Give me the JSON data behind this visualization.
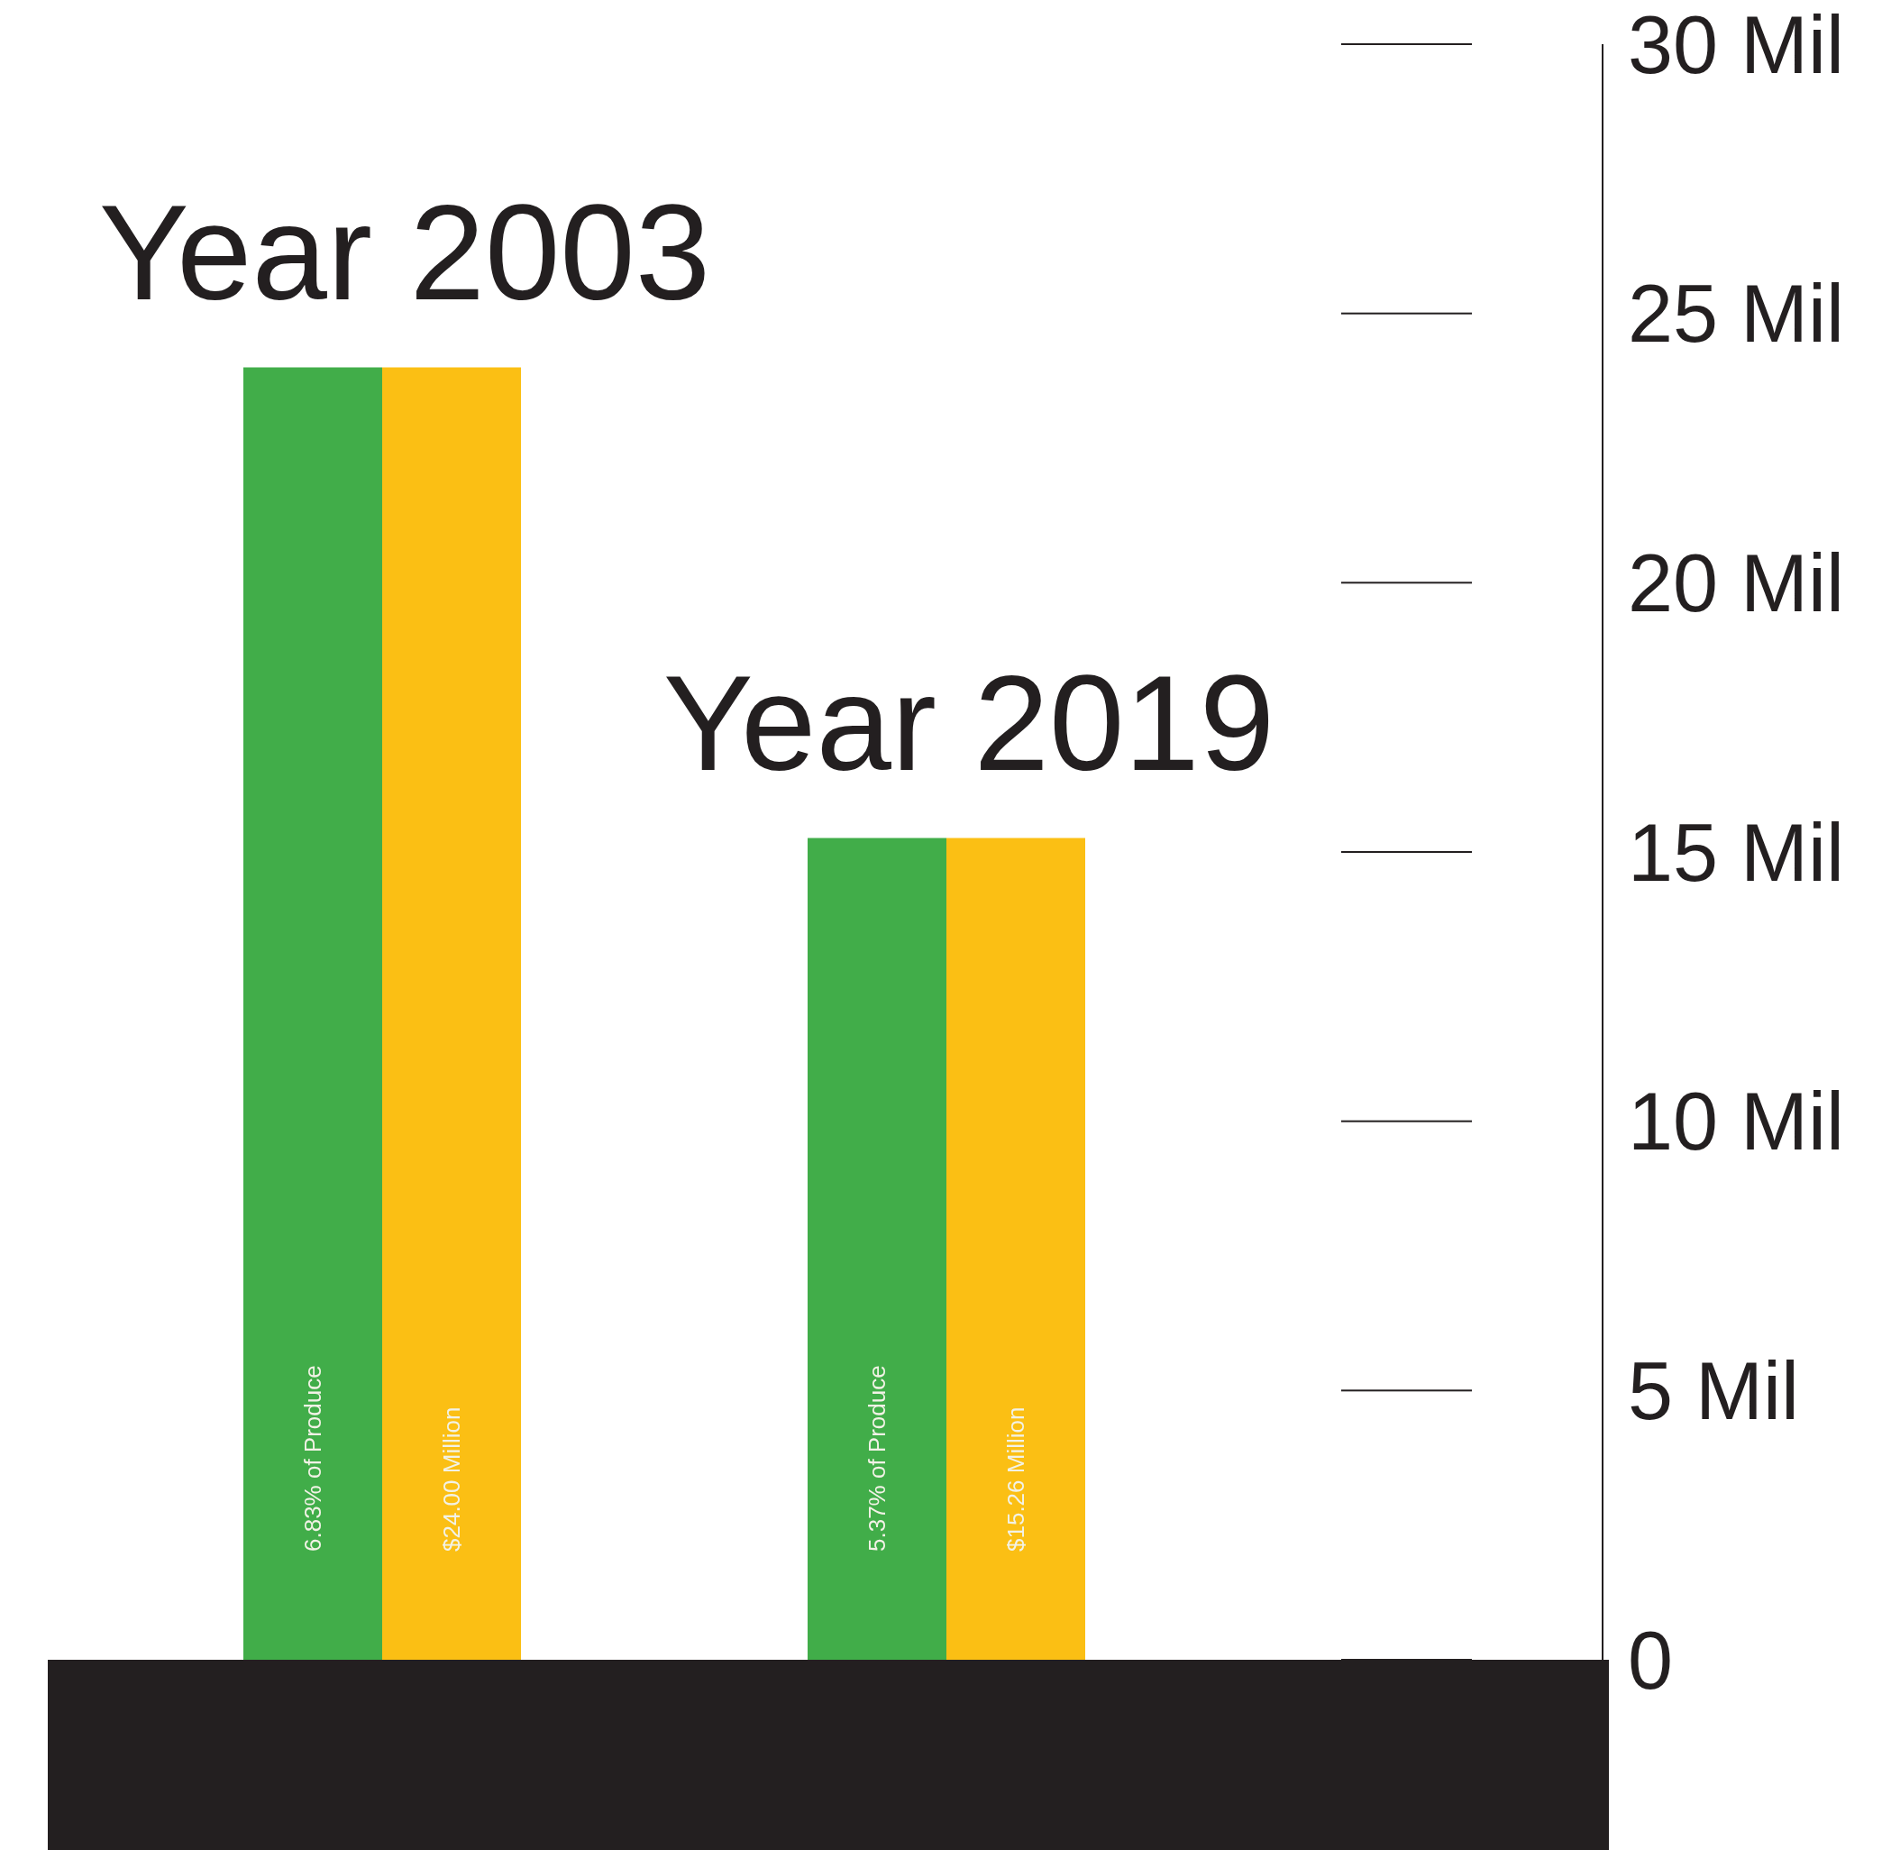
{
  "chart_data": {
    "type": "bar",
    "categories": [
      "Year 2003",
      "Year 2019"
    ],
    "series": [
      {
        "color": "#41ad49",
        "values": [
          24,
          15.26
        ]
      },
      {
        "color": "#fbbf14",
        "values": [
          24,
          15.26
        ],
        "value_labels": [
          "$24.00 Million",
          "$15.26 Million"
        ]
      }
    ],
    "ylim": [
      0,
      30
    ],
    "yticks": [
      {
        "value": 0,
        "label": "0"
      },
      {
        "value": 5,
        "label": "5 Mil"
      },
      {
        "value": 10,
        "label": "10 Mil"
      },
      {
        "value": 15,
        "label": "15 Mil"
      },
      {
        "value": 20,
        "label": "20 Mil"
      },
      {
        "value": 25,
        "label": "25 Mil"
      },
      {
        "value": 30,
        "label": "30 Mil"
      }
    ],
    "annotations": [
      {
        "text": "6.83% of Produce",
        "x": "Year 2003"
      },
      {
        "text": "5.37% of Produce",
        "x": "Year 2019"
      }
    ],
    "grid": false,
    "legend": false
  }
}
